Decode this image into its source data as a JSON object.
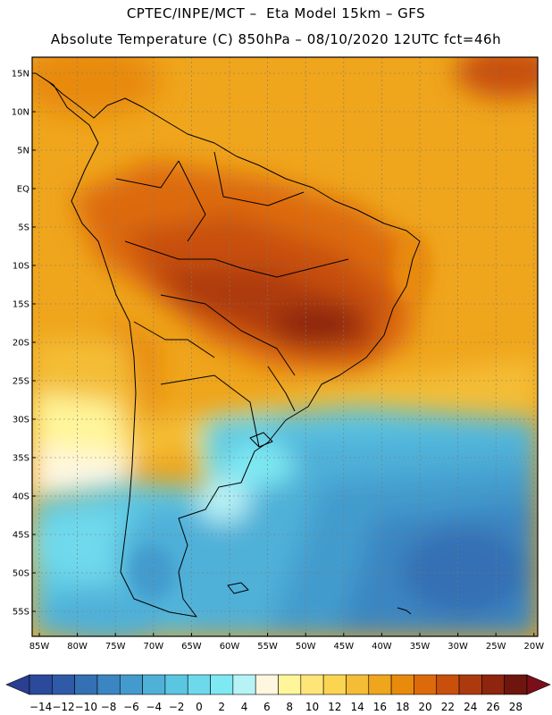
{
  "header": {
    "line1": "CPTEC/INPE/MCT –  Eta Model 15km – GFS",
    "line2": "Absolute Temperature (C) 850hPa – 08/10/2020 12UTC fct=46h"
  },
  "map": {
    "lat_labels": [
      "15N",
      "10N",
      "5N",
      "EQ",
      "5S",
      "10S",
      "15S",
      "20S",
      "25S",
      "30S",
      "35S",
      "40S",
      "45S",
      "50S",
      "55S"
    ],
    "lat_values": [
      15,
      10,
      5,
      0,
      -5,
      -10,
      -15,
      -20,
      -25,
      -30,
      -35,
      -40,
      -45,
      -50,
      -55
    ],
    "lon_labels": [
      "85W",
      "80W",
      "75W",
      "70W",
      "65W",
      "60W",
      "55W",
      "50W",
      "45W",
      "40W",
      "35W",
      "30W",
      "25W",
      "20W"
    ],
    "lon_values": [
      -85,
      -80,
      -75,
      -70,
      -65,
      -60,
      -55,
      -50,
      -45,
      -40,
      -35,
      -30,
      -25,
      -20
    ]
  },
  "colorbar": {
    "labels": [
      "-14",
      "-12",
      "-10",
      "-8",
      "-6",
      "-4",
      "-2",
      "0",
      "2",
      "4",
      "6",
      "8",
      "10",
      "12",
      "14",
      "16",
      "18",
      "20",
      "22",
      "24",
      "26",
      "28"
    ],
    "colors": [
      "#2b4a9c",
      "#2f5aa8",
      "#3470b4",
      "#3b86c2",
      "#439bcd",
      "#4fb0d8",
      "#5bc6e2",
      "#6fd9ec",
      "#7ee9f2",
      "#b7f2f6",
      "#fff6e0",
      "#fff59a",
      "#ffe577",
      "#fbd452",
      "#f4bd35",
      "#efa51c",
      "#e88a0c",
      "#dd6a0a",
      "#c8500c",
      "#ad3a0e",
      "#8d250f",
      "#6e160e"
    ],
    "low_arrow_color": "#2a3f8f",
    "high_arrow_color": "#7a0f1a"
  }
}
